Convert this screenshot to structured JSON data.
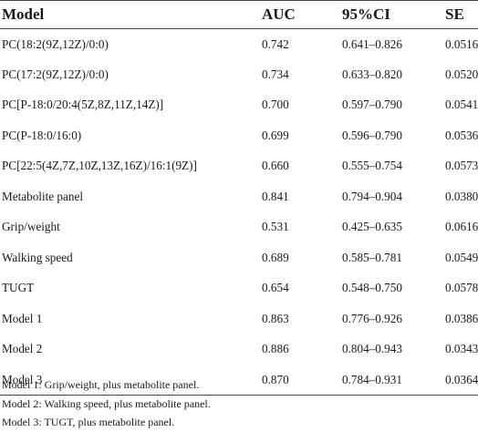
{
  "table": {
    "headers": {
      "model": "Model",
      "auc": "AUC",
      "ci": "95%CI",
      "se": "SE"
    },
    "rows": [
      {
        "model": "PC(18:2(9Z,12Z)/0:0)",
        "auc": "0.742",
        "ci": "0.641–0.826",
        "se": "0.0516"
      },
      {
        "model": "PC(17:2(9Z,12Z)/0:0)",
        "auc": "0.734",
        "ci": "0.633–0.820",
        "se": "0.0520"
      },
      {
        "model": "PC[P-18:0/20:4(5Z,8Z,11Z,14Z)]",
        "auc": "0.700",
        "ci": "0.597–0.790",
        "se": "0.0541"
      },
      {
        "model": "PC(P-18:0/16:0)",
        "auc": "0.699",
        "ci": "0.596–0.790",
        "se": "0.0536"
      },
      {
        "model": "PC[22:5(4Z,7Z,10Z,13Z,16Z)/16:1(9Z)]",
        "auc": "0.660",
        "ci": "0.555–0.754",
        "se": "0.0573"
      },
      {
        "model": "Metabolite panel",
        "auc": "0.841",
        "ci": "0.794–0.904",
        "se": "0.0380"
      },
      {
        "model": "Grip/weight",
        "auc": "0.531",
        "ci": "0.425–0.635",
        "se": "0.0616"
      },
      {
        "model": "Walking speed",
        "auc": "0.689",
        "ci": "0.585–0.781",
        "se": "0.0549"
      },
      {
        "model": "TUGT",
        "auc": "0.654",
        "ci": "0.548–0.750",
        "se": "0.0578"
      },
      {
        "model": "Model 1",
        "auc": "0.863",
        "ci": "0.776–0.926",
        "se": "0.0386"
      },
      {
        "model": "Model 2",
        "auc": "0.886",
        "ci": "0.804–0.943",
        "se": "0.0343"
      },
      {
        "model": "Model 3",
        "auc": "0.870",
        "ci": "0.784–0.931",
        "se": "0.0364"
      }
    ]
  },
  "footnotes": [
    "Model 1: Grip/weight, plus metabolite panel.",
    "Model 2: Walking speed, plus metabolite panel.",
    "Model 3: TUGT, plus metabolite panel."
  ]
}
